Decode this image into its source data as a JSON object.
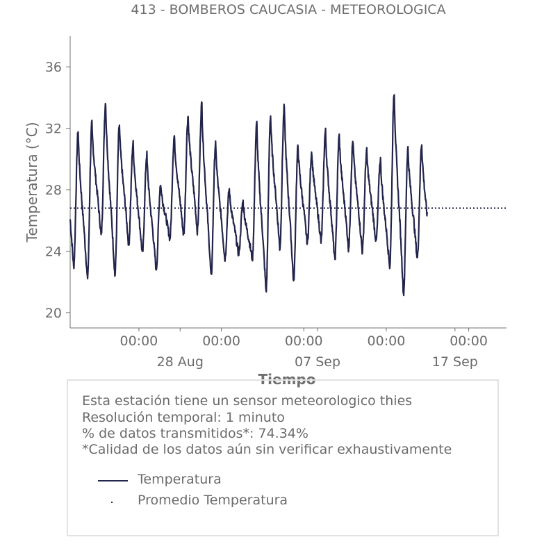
{
  "chart_data": {
    "type": "line",
    "title": "413 - BOMBEROS CAUCASIA - METEOROLOGICA",
    "xlabel": "Tiempo",
    "ylabel": "Temperatura (°C)",
    "ylim": [
      19,
      38
    ],
    "yticks": [
      20,
      24,
      28,
      32,
      36
    ],
    "xlim": [
      "2023-08-20T00:00",
      "2023-09-20T18:00"
    ],
    "xticks": [
      {
        "time": "2023-08-25T00:00",
        "label": "00:00"
      },
      {
        "time": "2023-08-31T00:00",
        "label": "00:00"
      },
      {
        "time": "2023-09-06T00:00",
        "label": "00:00"
      },
      {
        "time": "2023-09-12T00:00",
        "label": "00:00"
      },
      {
        "time": "2023-09-18T00:00",
        "label": "00:00"
      }
    ],
    "date_labels": [
      {
        "time": "2023-08-28T00:00",
        "label": "28 Aug"
      },
      {
        "time": "2023-09-07T00:00",
        "label": "07 Sep"
      },
      {
        "time": "2023-09-17T00:00",
        "label": "17 Sep"
      }
    ],
    "grid": false,
    "color": "#23244a",
    "series": [
      {
        "name": "Temperatura",
        "style": "solid",
        "daily_values": [
          {
            "date": "2023-08-20",
            "min": 23.0,
            "max": 31.8
          },
          {
            "date": "2023-08-21",
            "min": 22.2,
            "max": 32.3
          },
          {
            "date": "2023-08-22",
            "min": 25.0,
            "max": 33.7
          },
          {
            "date": "2023-08-23",
            "min": 22.4,
            "max": 32.2
          },
          {
            "date": "2023-08-24",
            "min": 24.4,
            "max": 31.0
          },
          {
            "date": "2023-08-25",
            "min": 23.8,
            "max": 30.3
          },
          {
            "date": "2023-08-26",
            "min": 22.8,
            "max": 28.4
          },
          {
            "date": "2023-08-27",
            "min": 24.8,
            "max": 31.5
          },
          {
            "date": "2023-08-28",
            "min": 25.0,
            "max": 32.8
          },
          {
            "date": "2023-08-29",
            "min": 25.3,
            "max": 33.6
          },
          {
            "date": "2023-08-30",
            "min": 22.3,
            "max": 31.0
          },
          {
            "date": "2023-08-31",
            "min": 23.5,
            "max": 28.0
          },
          {
            "date": "2023-09-01",
            "min": 23.8,
            "max": 27.2
          },
          {
            "date": "2023-09-02",
            "min": 23.5,
            "max": 32.3
          },
          {
            "date": "2023-09-03",
            "min": 21.4,
            "max": 32.8
          },
          {
            "date": "2023-09-04",
            "min": 24.2,
            "max": 33.4
          },
          {
            "date": "2023-09-05",
            "min": 22.0,
            "max": 30.8
          },
          {
            "date": "2023-09-06",
            "min": 24.5,
            "max": 30.5
          },
          {
            "date": "2023-09-07",
            "min": 24.6,
            "max": 31.8
          },
          {
            "date": "2023-09-08",
            "min": 23.4,
            "max": 31.5
          },
          {
            "date": "2023-09-09",
            "min": 24.2,
            "max": 31.2
          },
          {
            "date": "2023-09-10",
            "min": 24.0,
            "max": 30.5
          },
          {
            "date": "2023-09-11",
            "min": 24.6,
            "max": 30.0
          },
          {
            "date": "2023-09-12",
            "min": 23.0,
            "max": 34.4
          },
          {
            "date": "2023-09-13",
            "min": 21.2,
            "max": 30.7
          },
          {
            "date": "2023-09-14",
            "min": 23.5,
            "max": 31.0
          }
        ]
      },
      {
        "name": "Promedio Temperatura",
        "style": "dotted",
        "value": 26.8
      }
    ],
    "legend_position": "bottom"
  },
  "info": {
    "lines": [
      "Esta estación tiene un sensor meteorologico thies",
      "Resolución temporal: 1 minuto",
      "% de datos transmitidos*: 74.34%",
      "*Calidad de los datos aún sin verificar exhaustivamente"
    ]
  },
  "legend": {
    "temp_label": "Temperatura",
    "avg_label": "Promedio Temperatura"
  }
}
